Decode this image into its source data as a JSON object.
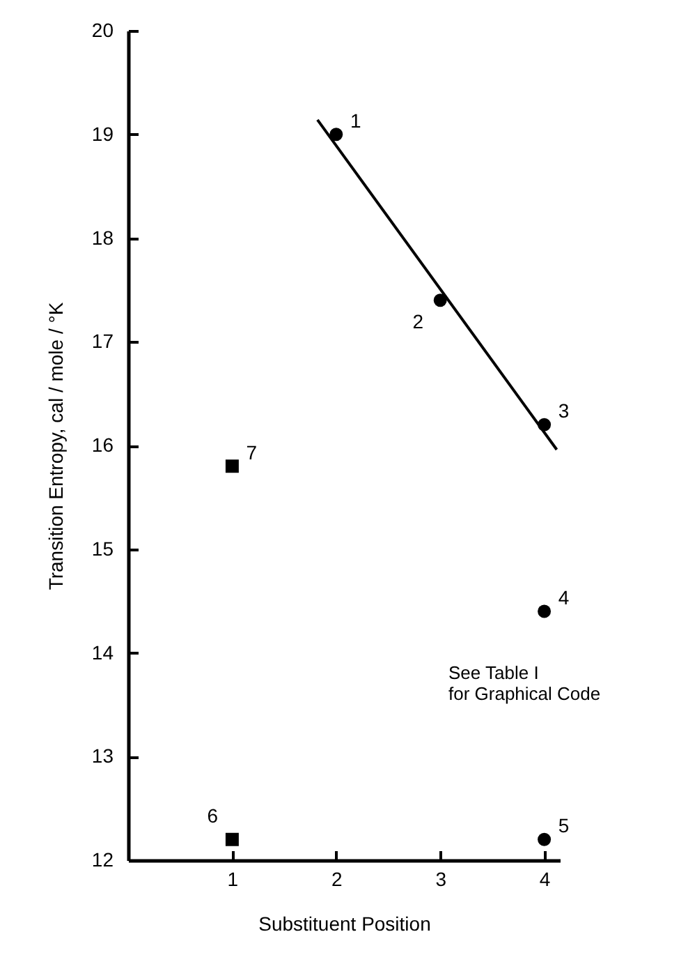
{
  "chart_data": {
    "type": "scatter",
    "xlabel": "Substituent Position",
    "ylabel": "Transition Entropy, cal / mole / °K",
    "xlim": [
      0,
      4.15
    ],
    "xticks": [
      1,
      2,
      3,
      4
    ],
    "ylim": [
      12,
      20
    ],
    "yticks": [
      12,
      13,
      14,
      15,
      16,
      17,
      18,
      19,
      20
    ],
    "grid": false,
    "series": [
      {
        "marker": "circle",
        "color": "#000000",
        "x": [
          2,
          3,
          4,
          4,
          4
        ],
        "values": [
          19.0,
          17.4,
          16.2,
          14.4,
          12.2
        ]
      },
      {
        "marker": "square",
        "color": "#000000",
        "x": [
          1,
          1
        ],
        "values": [
          12.2,
          15.8
        ]
      },
      {
        "type": "line",
        "marker": "none",
        "line_style": "solid",
        "color": "#000000",
        "x": [
          1.82,
          4.12
        ],
        "values": [
          19.14,
          15.96
        ]
      }
    ],
    "annotations": [
      {
        "text": "1",
        "x": 2,
        "y": 19.0
      },
      {
        "text": "2",
        "x": 3,
        "y": 17.4
      },
      {
        "text": "3",
        "x": 4,
        "y": 16.2
      },
      {
        "text": "4",
        "x": 4,
        "y": 14.4
      },
      {
        "text": "5",
        "x": 4,
        "y": 12.2
      },
      {
        "text": "6",
        "x": 1,
        "y": 12.2
      },
      {
        "text": "7",
        "x": 1,
        "y": 15.8
      },
      "See Table I\nfor Graphical Code"
    ]
  }
}
